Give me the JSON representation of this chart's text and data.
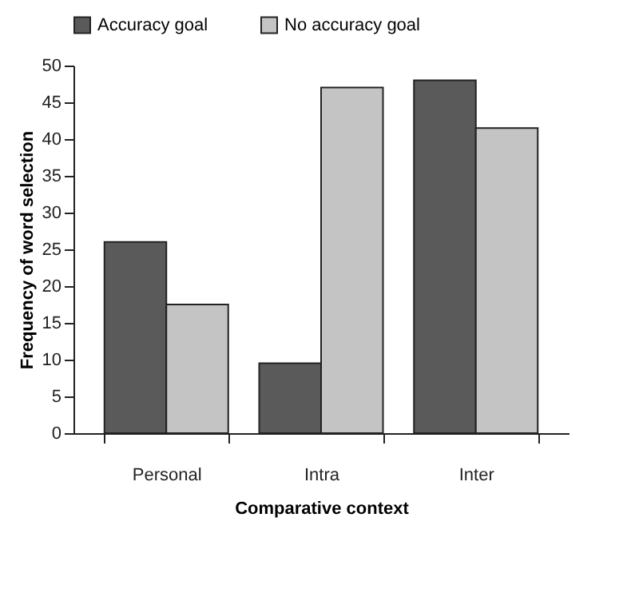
{
  "chart_data": {
    "type": "bar",
    "xlabel": "Comparative context",
    "ylabel": "Frequency of word selection",
    "categories": [
      "Personal",
      "Intra",
      "Inter"
    ],
    "series": [
      {
        "name": "Accuracy goal",
        "color": "#5a5a5a",
        "values": [
          26,
          9.5,
          48
        ]
      },
      {
        "name": "No accuracy goal",
        "color": "#c4c4c4",
        "values": [
          17.5,
          47,
          41.5
        ]
      }
    ],
    "ylim": [
      0,
      50
    ],
    "yticks": [
      0,
      5,
      10,
      15,
      20,
      25,
      30,
      35,
      40,
      45,
      50
    ],
    "grid": false,
    "legend": "top"
  }
}
